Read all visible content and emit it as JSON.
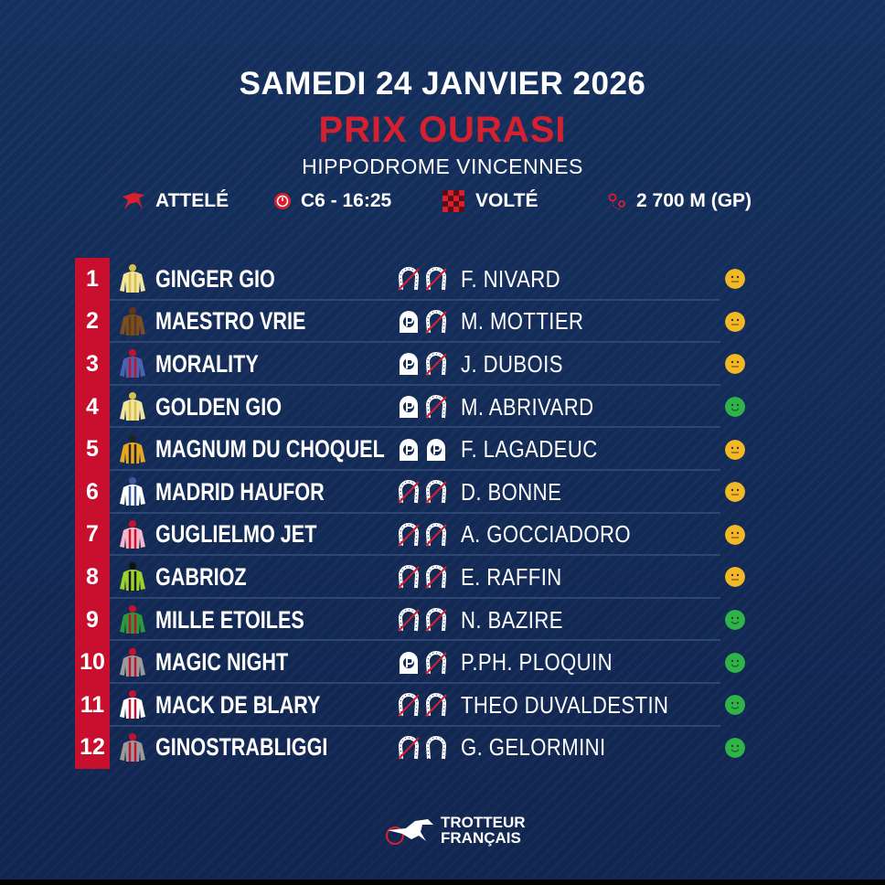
{
  "header": {
    "date": "SAMEDI 24 JANVIER 2026",
    "race": "PRIX OURASI",
    "venue": "HIPPODROME VINCENNES"
  },
  "info": {
    "discipline": "ATTELÉ",
    "course": "C6 - 16:25",
    "start": "VOLTÉ",
    "distance": "2 700 M (GP)"
  },
  "colors": {
    "accent": "#c8102e",
    "background": "#142b57",
    "neutral": "#f2b825",
    "good": "#2fb44a"
  },
  "runners": [
    {
      "num": "1",
      "horse": "GINGER GIO",
      "driver": "F. NIVARD",
      "shoes": [
        "unshod",
        "unshod"
      ],
      "mood": "neutral",
      "silk": [
        "#f0e6a0",
        "#d9c04a"
      ]
    },
    {
      "num": "2",
      "horse": "MAESTRO VRIE",
      "driver": "M. MOTTIER",
      "shoes": [
        "plate",
        "unshod"
      ],
      "mood": "neutral",
      "silk": [
        "#7a4e23",
        "#5a3818"
      ]
    },
    {
      "num": "3",
      "horse": "MORALITY",
      "driver": "J. DUBOIS",
      "shoes": [
        "plate",
        "unshod"
      ],
      "mood": "neutral",
      "silk": [
        "#4a63b0",
        "#c8102e"
      ]
    },
    {
      "num": "4",
      "horse": "GOLDEN GIO",
      "driver": "M. ABRIVARD",
      "shoes": [
        "plate",
        "unshod"
      ],
      "mood": "good",
      "silk": [
        "#f0e6a0",
        "#d9c04a"
      ]
    },
    {
      "num": "5",
      "horse": "MAGNUM DU CHOQUEL",
      "driver": "F. LAGADEUC",
      "shoes": [
        "plate",
        "plate"
      ],
      "mood": "neutral",
      "silk": [
        "#e8a81e",
        "#222"
      ]
    },
    {
      "num": "6",
      "horse": "MADRID HAUFOR",
      "driver": "D. BONNE",
      "shoes": [
        "unshod",
        "unshod"
      ],
      "mood": "neutral",
      "silk": [
        "#ffffff",
        "#3a5aa0"
      ]
    },
    {
      "num": "7",
      "horse": "GUGLIELMO JET",
      "driver": "A. GOCCIADORO",
      "shoes": [
        "unshod",
        "unshod"
      ],
      "mood": "neutral",
      "silk": [
        "#f4b8c8",
        "#c8102e"
      ]
    },
    {
      "num": "8",
      "horse": "GABRIOZ",
      "driver": "E. RAFFIN",
      "shoes": [
        "unshod",
        "unshod"
      ],
      "mood": "neutral",
      "silk": [
        "#9ad12a",
        "#111"
      ]
    },
    {
      "num": "9",
      "horse": "MILLE ETOILES",
      "driver": "N. BAZIRE",
      "shoes": [
        "unshod",
        "unshod"
      ],
      "mood": "good",
      "silk": [
        "#2a9a3a",
        "#c8102e"
      ]
    },
    {
      "num": "10",
      "horse": "MAGIC NIGHT",
      "driver": "P.PH. PLOQUIN",
      "shoes": [
        "plate",
        "unshod"
      ],
      "mood": "good",
      "silk": [
        "#9a9a9a",
        "#c8102e"
      ]
    },
    {
      "num": "11",
      "horse": "MACK DE BLARY",
      "driver": "THEO DUVALDESTIN",
      "shoes": [
        "unshod",
        "unshod"
      ],
      "mood": "good",
      "silk": [
        "#ffffff",
        "#c8102e"
      ]
    },
    {
      "num": "12",
      "horse": "GINOSTRABLIGGI",
      "driver": "G. GELORMINI",
      "shoes": [
        "unshod",
        "shod"
      ],
      "mood": "good",
      "silk": [
        "#9a9a9a",
        "#c8102e"
      ]
    }
  ],
  "logo": {
    "line1": "TROTTEUR",
    "line2": "FRANÇAIS"
  }
}
